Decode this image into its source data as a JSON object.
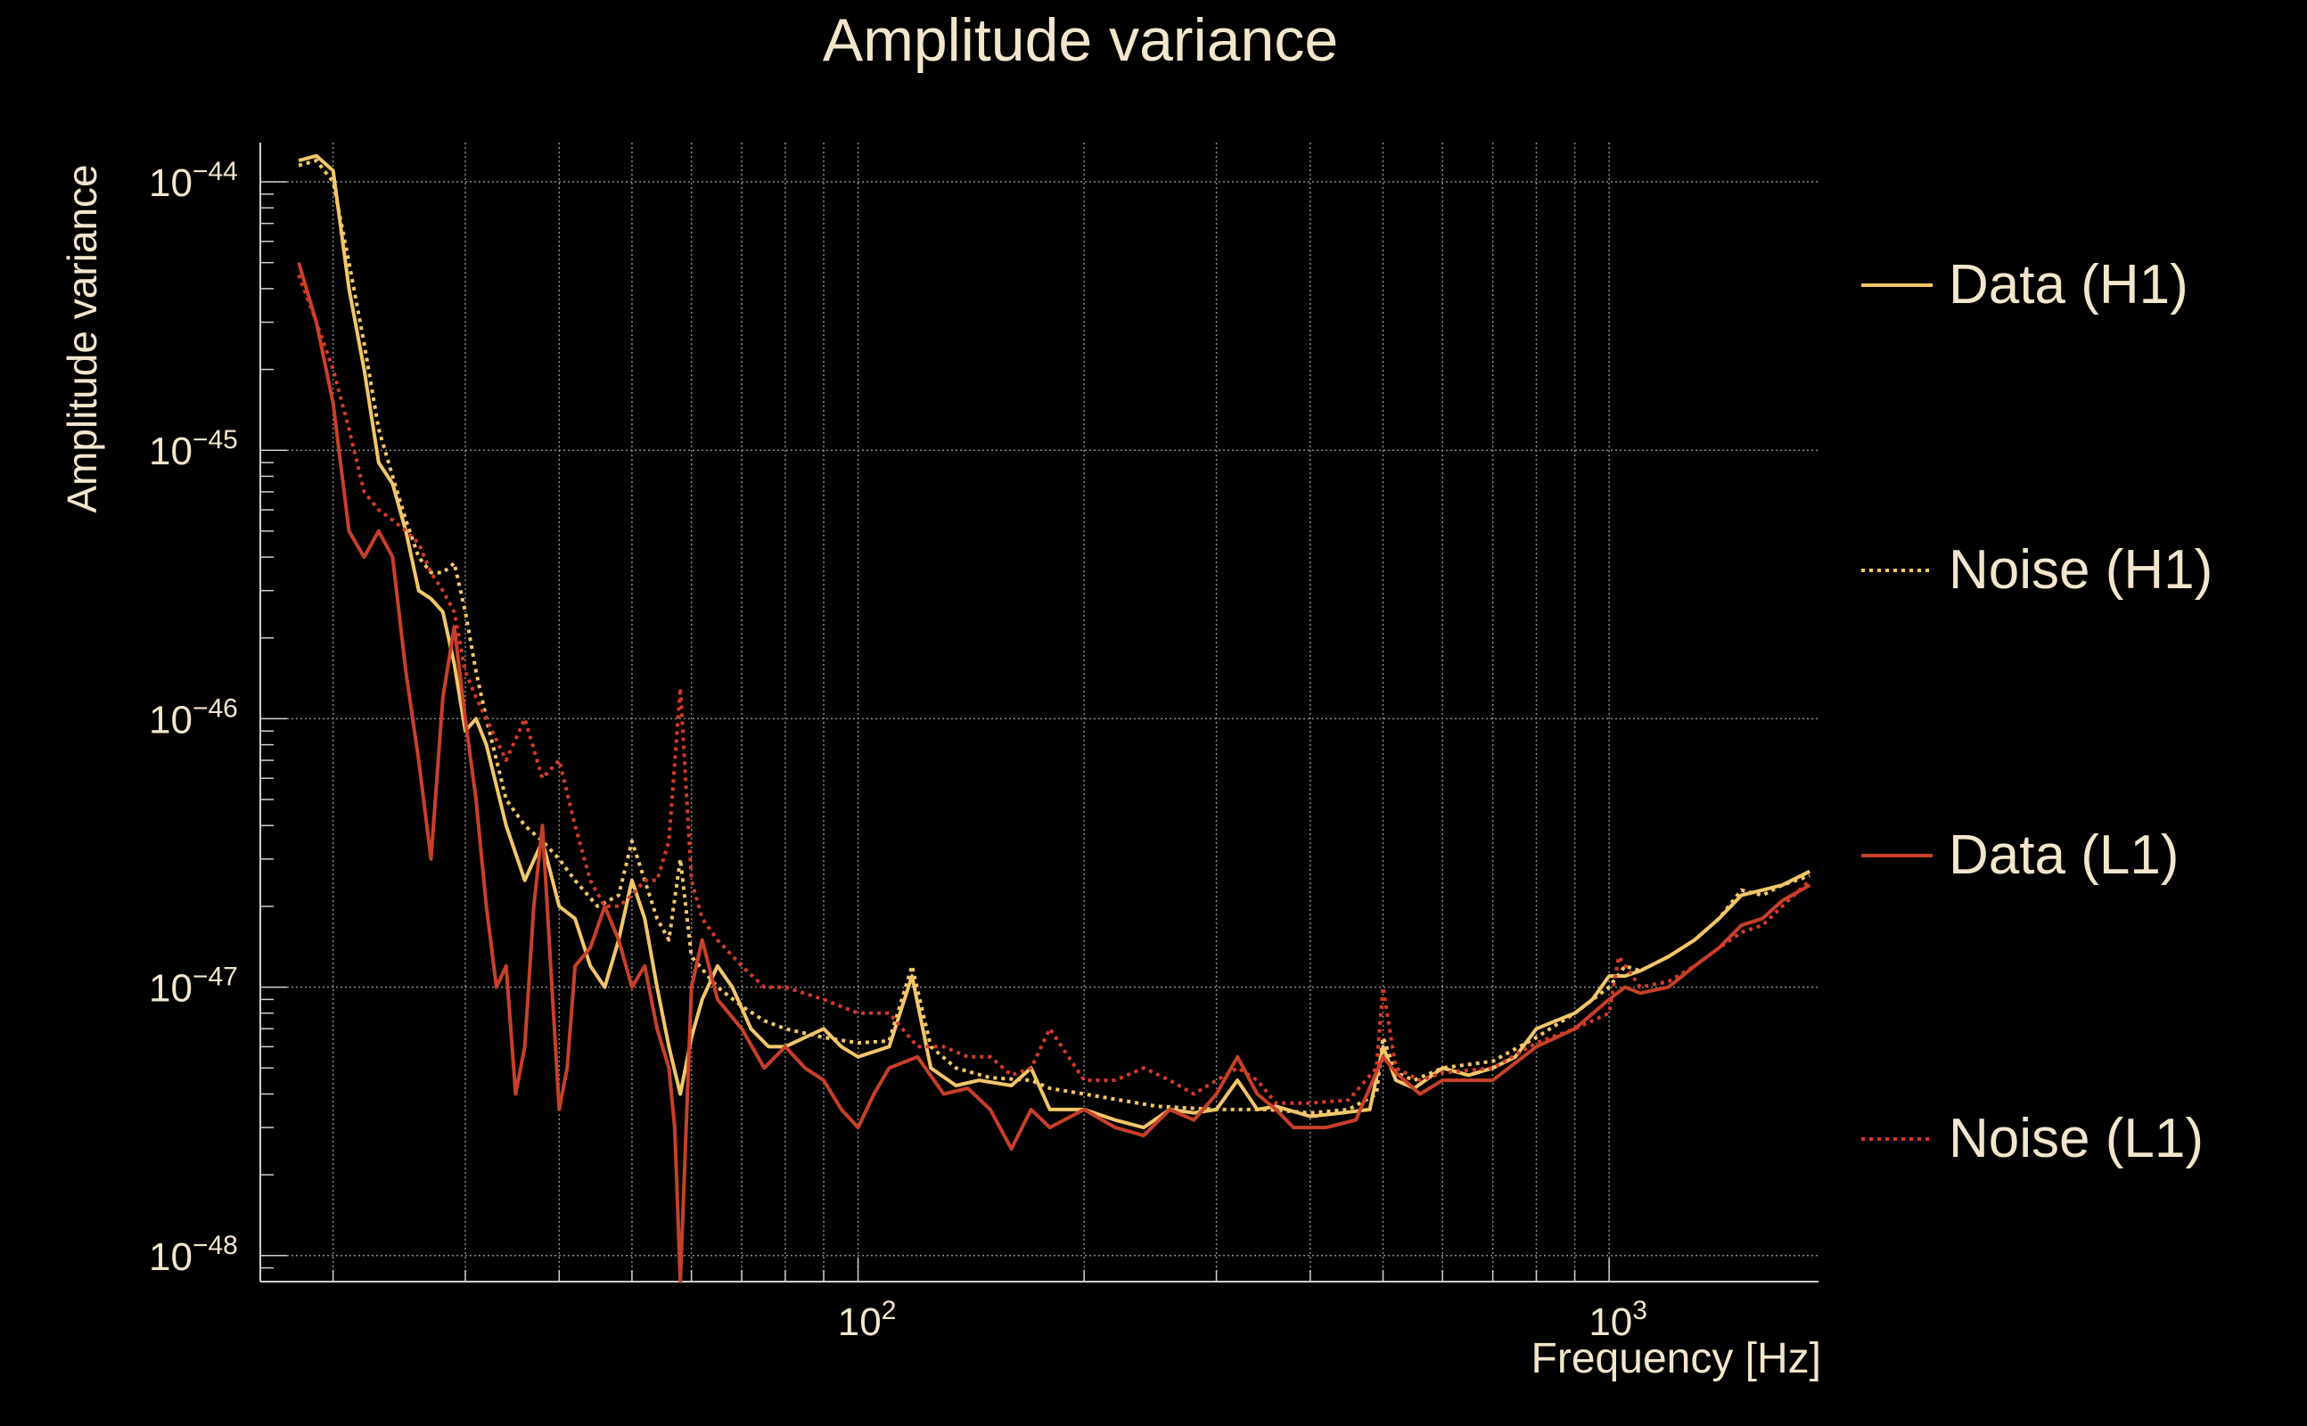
{
  "colors": {
    "background": "#000000",
    "text": "#f3e6cc",
    "grid": "#8a8a8a",
    "data_h1": "#f2c76a",
    "noise_h1": "#f2c76a",
    "data_l1": "#c8402a",
    "noise_l1": "#d33a2a"
  },
  "chart_data": {
    "type": "line",
    "title": "Amplitude variance",
    "xlabel": "Frequency [Hz]",
    "ylabel": "Amplitude variance",
    "xscale": "log",
    "yscale": "log",
    "xlim": [
      16,
      1900
    ],
    "ylim": [
      8e-49,
      1.4e-44
    ],
    "grid": true,
    "legend_position": "right",
    "x_ticks": [
      {
        "value": 100,
        "base": "10",
        "exp": "2"
      },
      {
        "value": 1000,
        "base": "10",
        "exp": "3"
      }
    ],
    "y_ticks": [
      {
        "value": 1e-44,
        "base": "10",
        "exp": "−44"
      },
      {
        "value": 1e-45,
        "base": "10",
        "exp": "−45"
      },
      {
        "value": 1e-46,
        "base": "10",
        "exp": "−46"
      },
      {
        "value": 1e-47,
        "base": "10",
        "exp": "−47"
      },
      {
        "value": 1e-48,
        "base": "10",
        "exp": "−48"
      }
    ],
    "series": [
      {
        "name": "Data (H1)",
        "style": "solid",
        "points": [
          [
            18,
            1.2e-44
          ],
          [
            19,
            1.25e-44
          ],
          [
            20,
            1.1e-44
          ],
          [
            21,
            4e-45
          ],
          [
            22,
            2e-45
          ],
          [
            23,
            9e-46
          ],
          [
            24,
            7.5e-46
          ],
          [
            25,
            5e-46
          ],
          [
            26,
            3e-46
          ],
          [
            27,
            2.8e-46
          ],
          [
            28,
            2.5e-46
          ],
          [
            29,
            1.6e-46
          ],
          [
            30,
            9e-47
          ],
          [
            31,
            1e-46
          ],
          [
            32,
            8e-47
          ],
          [
            34,
            4e-47
          ],
          [
            36,
            2.5e-47
          ],
          [
            38,
            3.5e-47
          ],
          [
            40,
            2e-47
          ],
          [
            42,
            1.8e-47
          ],
          [
            44,
            1.2e-47
          ],
          [
            46,
            1e-47
          ],
          [
            48,
            1.5e-47
          ],
          [
            50,
            2.5e-47
          ],
          [
            52,
            1.8e-47
          ],
          [
            54,
            1e-47
          ],
          [
            56,
            6e-48
          ],
          [
            58,
            4e-48
          ],
          [
            60,
            6.5e-48
          ],
          [
            62,
            9e-48
          ],
          [
            65,
            1.2e-47
          ],
          [
            68,
            1e-47
          ],
          [
            72,
            7e-48
          ],
          [
            76,
            6e-48
          ],
          [
            80,
            6e-48
          ],
          [
            85,
            6.5e-48
          ],
          [
            90,
            7e-48
          ],
          [
            95,
            6e-48
          ],
          [
            100,
            5.5e-48
          ],
          [
            110,
            6e-48
          ],
          [
            118,
            1.1e-47
          ],
          [
            125,
            5e-48
          ],
          [
            135,
            4.3e-48
          ],
          [
            145,
            4.5e-48
          ],
          [
            160,
            4.3e-48
          ],
          [
            170,
            5e-48
          ],
          [
            180,
            3.5e-48
          ],
          [
            200,
            3.5e-48
          ],
          [
            220,
            3.2e-48
          ],
          [
            240,
            3e-48
          ],
          [
            260,
            3.5e-48
          ],
          [
            280,
            3.4e-48
          ],
          [
            300,
            3.5e-48
          ],
          [
            320,
            4.5e-48
          ],
          [
            340,
            3.5e-48
          ],
          [
            360,
            3.6e-48
          ],
          [
            400,
            3.3e-48
          ],
          [
            440,
            3.4e-48
          ],
          [
            480,
            3.5e-48
          ],
          [
            500,
            6e-48
          ],
          [
            520,
            4.5e-48
          ],
          [
            550,
            4.2e-48
          ],
          [
            600,
            5e-48
          ],
          [
            650,
            4.7e-48
          ],
          [
            700,
            5e-48
          ],
          [
            750,
            5.5e-48
          ],
          [
            800,
            7e-48
          ],
          [
            850,
            7.5e-48
          ],
          [
            900,
            8e-48
          ],
          [
            950,
            9e-48
          ],
          [
            1000,
            1.1e-47
          ],
          [
            1050,
            1.1e-47
          ],
          [
            1100,
            1.15e-47
          ],
          [
            1200,
            1.3e-47
          ],
          [
            1300,
            1.5e-47
          ],
          [
            1400,
            1.8e-47
          ],
          [
            1500,
            2.2e-47
          ],
          [
            1600,
            2.3e-47
          ],
          [
            1700,
            2.4e-47
          ],
          [
            1850,
            2.7e-47
          ]
        ]
      },
      {
        "name": "Noise (H1)",
        "style": "dotted",
        "points": [
          [
            18,
            1.15e-44
          ],
          [
            19,
            1.2e-44
          ],
          [
            20,
            1e-44
          ],
          [
            21,
            5e-45
          ],
          [
            22,
            2.5e-45
          ],
          [
            23,
            1.2e-45
          ],
          [
            24,
            8e-46
          ],
          [
            25,
            5.5e-46
          ],
          [
            26,
            4e-46
          ],
          [
            27,
            3.5e-46
          ],
          [
            28,
            3.5e-46
          ],
          [
            29,
            3.8e-46
          ],
          [
            30,
            2.5e-46
          ],
          [
            31,
            1.5e-46
          ],
          [
            32,
            1e-46
          ],
          [
            34,
            5e-47
          ],
          [
            36,
            4e-47
          ],
          [
            38,
            3.5e-47
          ],
          [
            40,
            3e-47
          ],
          [
            42,
            2.5e-47
          ],
          [
            45,
            2e-47
          ],
          [
            48,
            2.2e-47
          ],
          [
            50,
            3.5e-47
          ],
          [
            52,
            2.5e-47
          ],
          [
            54,
            1.8e-47
          ],
          [
            56,
            1.5e-47
          ],
          [
            58,
            3e-47
          ],
          [
            60,
            1.3e-47
          ],
          [
            65,
            1e-47
          ],
          [
            70,
            8.5e-48
          ],
          [
            75,
            7.5e-48
          ],
          [
            80,
            7e-48
          ],
          [
            90,
            6.5e-48
          ],
          [
            100,
            6.2e-48
          ],
          [
            110,
            6.3e-48
          ],
          [
            118,
            1.2e-47
          ],
          [
            125,
            6e-48
          ],
          [
            135,
            5e-48
          ],
          [
            150,
            4.6e-48
          ],
          [
            170,
            4.5e-48
          ],
          [
            180,
            4.2e-48
          ],
          [
            200,
            4e-48
          ],
          [
            250,
            3.6e-48
          ],
          [
            300,
            3.5e-48
          ],
          [
            350,
            3.5e-48
          ],
          [
            400,
            3.4e-48
          ],
          [
            450,
            3.5e-48
          ],
          [
            490,
            4e-48
          ],
          [
            500,
            6.5e-48
          ],
          [
            520,
            4.8e-48
          ],
          [
            550,
            4.5e-48
          ],
          [
            600,
            5e-48
          ],
          [
            700,
            5.3e-48
          ],
          [
            800,
            6.5e-48
          ],
          [
            900,
            8e-48
          ],
          [
            1000,
            1e-47
          ],
          [
            1050,
            1.2e-47
          ],
          [
            1100,
            1.15e-47
          ],
          [
            1200,
            1.3e-47
          ],
          [
            1300,
            1.5e-47
          ],
          [
            1400,
            1.8e-47
          ],
          [
            1500,
            2.3e-47
          ],
          [
            1600,
            2.2e-47
          ],
          [
            1700,
            2.4e-47
          ],
          [
            1850,
            2.6e-47
          ]
        ]
      },
      {
        "name": "Data (L1)",
        "style": "solid",
        "points": [
          [
            18,
            5e-45
          ],
          [
            19,
            3e-45
          ],
          [
            20,
            1.5e-45
          ],
          [
            21,
            5e-46
          ],
          [
            22,
            4e-46
          ],
          [
            23,
            5e-46
          ],
          [
            24,
            4e-46
          ],
          [
            25,
            1.5e-46
          ],
          [
            26,
            7e-47
          ],
          [
            27,
            3e-47
          ],
          [
            28,
            1.2e-46
          ],
          [
            29,
            2.2e-46
          ],
          [
            30,
            1e-46
          ],
          [
            31,
            5e-47
          ],
          [
            32,
            2e-47
          ],
          [
            33,
            1e-47
          ],
          [
            34,
            1.2e-47
          ],
          [
            35,
            4e-48
          ],
          [
            36,
            6e-48
          ],
          [
            37,
            2e-47
          ],
          [
            38,
            4e-47
          ],
          [
            40,
            3.5e-48
          ],
          [
            41,
            5e-48
          ],
          [
            42,
            1.2e-47
          ],
          [
            44,
            1.4e-47
          ],
          [
            46,
            2e-47
          ],
          [
            48,
            1.5e-47
          ],
          [
            50,
            1e-47
          ],
          [
            52,
            1.2e-47
          ],
          [
            54,
            7e-48
          ],
          [
            56,
            5e-48
          ],
          [
            57,
            3e-48
          ],
          [
            58,
            8e-49
          ],
          [
            60,
            1e-47
          ],
          [
            62,
            1.5e-47
          ],
          [
            65,
            9e-48
          ],
          [
            70,
            7e-48
          ],
          [
            75,
            5e-48
          ],
          [
            80,
            6e-48
          ],
          [
            85,
            5e-48
          ],
          [
            90,
            4.5e-48
          ],
          [
            95,
            3.5e-48
          ],
          [
            100,
            3e-48
          ],
          [
            105,
            4e-48
          ],
          [
            110,
            5e-48
          ],
          [
            120,
            5.5e-48
          ],
          [
            130,
            4e-48
          ],
          [
            140,
            4.2e-48
          ],
          [
            150,
            3.5e-48
          ],
          [
            160,
            2.5e-48
          ],
          [
            170,
            3.5e-48
          ],
          [
            180,
            3e-48
          ],
          [
            200,
            3.5e-48
          ],
          [
            220,
            3e-48
          ],
          [
            240,
            2.8e-48
          ],
          [
            260,
            3.5e-48
          ],
          [
            280,
            3.2e-48
          ],
          [
            300,
            4e-48
          ],
          [
            320,
            5.5e-48
          ],
          [
            340,
            4e-48
          ],
          [
            360,
            3.5e-48
          ],
          [
            380,
            3e-48
          ],
          [
            420,
            3e-48
          ],
          [
            460,
            3.2e-48
          ],
          [
            500,
            5.5e-48
          ],
          [
            520,
            4.8e-48
          ],
          [
            560,
            4e-48
          ],
          [
            600,
            4.5e-48
          ],
          [
            700,
            4.5e-48
          ],
          [
            800,
            6e-48
          ],
          [
            900,
            7e-48
          ],
          [
            1000,
            9e-48
          ],
          [
            1050,
            1e-47
          ],
          [
            1100,
            9.5e-48
          ],
          [
            1200,
            1e-47
          ],
          [
            1300,
            1.2e-47
          ],
          [
            1400,
            1.4e-47
          ],
          [
            1500,
            1.7e-47
          ],
          [
            1600,
            1.8e-47
          ],
          [
            1700,
            2.1e-47
          ],
          [
            1850,
            2.4e-47
          ]
        ]
      },
      {
        "name": "Noise (L1)",
        "style": "dotted",
        "points": [
          [
            18,
            4.5e-45
          ],
          [
            19,
            3e-45
          ],
          [
            20,
            2e-45
          ],
          [
            21,
            1.2e-45
          ],
          [
            22,
            7e-46
          ],
          [
            23,
            6e-46
          ],
          [
            24,
            5.5e-46
          ],
          [
            25,
            5e-46
          ],
          [
            26,
            4.5e-46
          ],
          [
            27,
            3.5e-46
          ],
          [
            28,
            3e-46
          ],
          [
            29,
            2.5e-46
          ],
          [
            30,
            1.5e-46
          ],
          [
            31,
            1.2e-46
          ],
          [
            32,
            1e-46
          ],
          [
            34,
            7e-47
          ],
          [
            36,
            1e-46
          ],
          [
            38,
            6e-47
          ],
          [
            40,
            7e-47
          ],
          [
            42,
            4e-47
          ],
          [
            44,
            2.5e-47
          ],
          [
            46,
            2e-47
          ],
          [
            48,
            2e-47
          ],
          [
            50,
            2.2e-47
          ],
          [
            52,
            2.5e-47
          ],
          [
            54,
            2.5e-47
          ],
          [
            56,
            3.5e-47
          ],
          [
            58,
            1.3e-46
          ],
          [
            60,
            2.5e-47
          ],
          [
            62,
            1.8e-47
          ],
          [
            65,
            1.5e-47
          ],
          [
            70,
            1.2e-47
          ],
          [
            75,
            1e-47
          ],
          [
            80,
            1e-47
          ],
          [
            90,
            9e-48
          ],
          [
            100,
            8e-48
          ],
          [
            110,
            8e-48
          ],
          [
            120,
            6e-48
          ],
          [
            130,
            6e-48
          ],
          [
            140,
            5.5e-48
          ],
          [
            150,
            5.5e-48
          ],
          [
            160,
            4.7e-48
          ],
          [
            170,
            5e-48
          ],
          [
            180,
            7e-48
          ],
          [
            200,
            4.5e-48
          ],
          [
            220,
            4.5e-48
          ],
          [
            240,
            5e-48
          ],
          [
            260,
            4.5e-48
          ],
          [
            280,
            4e-48
          ],
          [
            300,
            4.5e-48
          ],
          [
            320,
            5e-48
          ],
          [
            340,
            4.5e-48
          ],
          [
            360,
            3.7e-48
          ],
          [
            400,
            3.7e-48
          ],
          [
            450,
            3.8e-48
          ],
          [
            490,
            5e-48
          ],
          [
            500,
            1e-47
          ],
          [
            520,
            5e-48
          ],
          [
            560,
            4.5e-48
          ],
          [
            600,
            4.8e-48
          ],
          [
            700,
            5e-48
          ],
          [
            800,
            6.2e-48
          ],
          [
            900,
            7e-48
          ],
          [
            1000,
            8e-48
          ],
          [
            1030,
            1.3e-47
          ],
          [
            1100,
            1e-47
          ],
          [
            1200,
            1.05e-47
          ],
          [
            1300,
            1.2e-47
          ],
          [
            1400,
            1.4e-47
          ],
          [
            1500,
            1.6e-47
          ],
          [
            1600,
            1.7e-47
          ],
          [
            1700,
            2e-47
          ],
          [
            1850,
            2.5e-47
          ]
        ]
      }
    ]
  }
}
